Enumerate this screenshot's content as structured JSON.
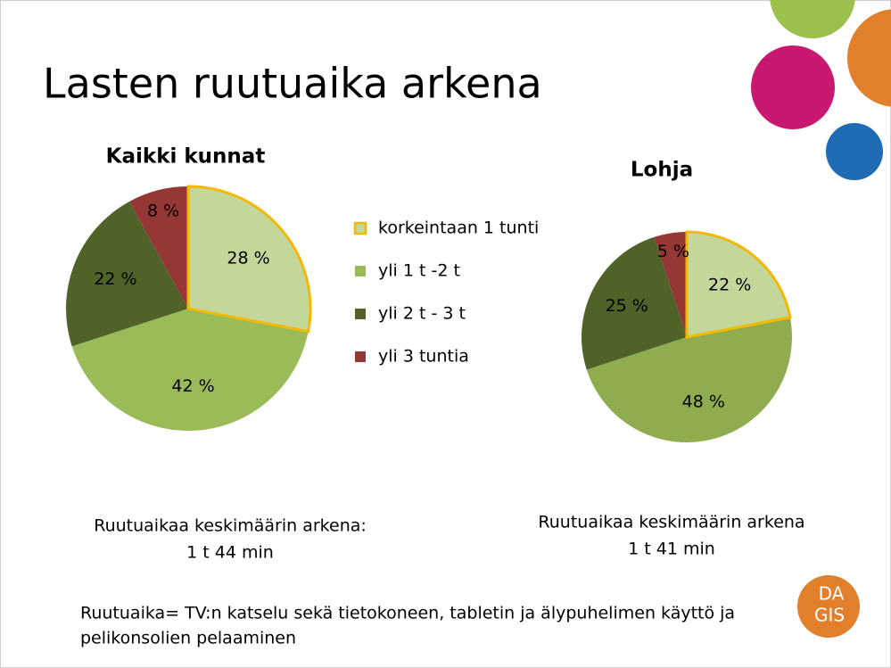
{
  "title": "Lasten ruutuaika arkena",
  "chart_data": [
    {
      "type": "pie",
      "title": "Kaikki kunnat",
      "categories": [
        "korkeintaan 1 tunti",
        "yli 1 t -2 t",
        "yli 2 t - 3 t",
        "yli 3 tuntia"
      ],
      "values": [
        28,
        42,
        22,
        8
      ],
      "value_labels": [
        "28 %",
        "42 %",
        "22 %",
        "8 %"
      ],
      "colors": [
        "#c4d79b",
        "#9bbb59",
        "#4f6228",
        "#953735"
      ],
      "highlight_color": "#f5b800"
    },
    {
      "type": "pie",
      "title": "Lohja",
      "values": [
        22,
        48,
        25,
        5
      ],
      "value_labels": [
        "22 %",
        "48 %",
        "25 %",
        "5 %"
      ],
      "colors": [
        "#c4d79b",
        "#8fad4f",
        "#4f6228",
        "#953735"
      ],
      "highlight_color": "#f5b800"
    }
  ],
  "notes": [
    [
      "Ruutuaikaa keskimäärin arkena:",
      "1 t 44 min"
    ],
    [
      "Ruutuaikaa keskimäärin arkena",
      "1 t 41  min"
    ]
  ],
  "definition": [
    "Ruutuaika= TV:n katselu sekä tietokoneen, tabletin ja älypuhelimen käyttö ja",
    "pelikonsolien pelaaminen"
  ],
  "logo": [
    "DA",
    "GIS"
  ]
}
